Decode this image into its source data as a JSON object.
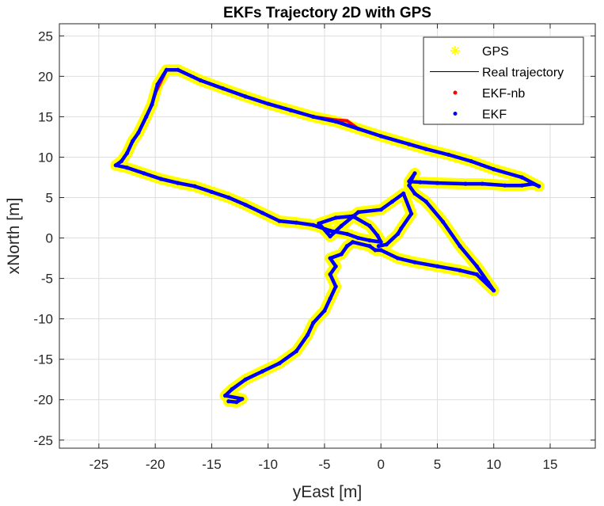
{
  "chart_data": {
    "type": "line",
    "title": "EKFs Trajectory 2D with GPS",
    "xlabel": "yEast [m]",
    "ylabel": "xNorth [m]",
    "xlim": [
      -28.5,
      19
    ],
    "ylim": [
      -26,
      26.5
    ],
    "xticks": [
      -25,
      -20,
      -15,
      -10,
      -5,
      0,
      5,
      10,
      15
    ],
    "yticks": [
      25,
      20,
      15,
      10,
      5,
      0,
      -5,
      -10,
      -15,
      -20,
      -25
    ],
    "grid": true,
    "legend_position": "top-right",
    "series": [
      {
        "name": "GPS",
        "marker": "asterisk",
        "color": "#ffff00",
        "points": [
          [
            -13.5,
            -20.2
          ],
          [
            -12.8,
            -20.3
          ],
          [
            -12.3,
            -19.9
          ],
          [
            -13.8,
            -19.5
          ],
          [
            -13.2,
            -18.7
          ],
          [
            -12.0,
            -17.5
          ],
          [
            -10.5,
            -16.5
          ],
          [
            -9.0,
            -15.5
          ],
          [
            -7.5,
            -14.0
          ],
          [
            -6.5,
            -12.0
          ],
          [
            -6.0,
            -10.5
          ],
          [
            -5.0,
            -9.0
          ],
          [
            -4.5,
            -7.5
          ],
          [
            -4.0,
            -6.0
          ],
          [
            -4.5,
            -4.5
          ],
          [
            -4.0,
            -3.5
          ],
          [
            -4.5,
            -2.5
          ],
          [
            -3.5,
            -2.0
          ],
          [
            -3.0,
            -1.0
          ],
          [
            -2.5,
            -0.5
          ],
          [
            -1.0,
            -1.0
          ],
          [
            -0.5,
            -1.5
          ],
          [
            0.0,
            -1.5
          ],
          [
            1.5,
            -2.5
          ],
          [
            3.0,
            -3.0
          ],
          [
            5.0,
            -3.5
          ],
          [
            7.0,
            -4.0
          ],
          [
            8.5,
            -4.5
          ],
          [
            10.0,
            -6.5
          ],
          [
            9.5,
            -5.5
          ],
          [
            8.5,
            -3.5
          ],
          [
            7.0,
            -1.0
          ],
          [
            5.5,
            2.0
          ],
          [
            4.0,
            4.5
          ],
          [
            3.0,
            5.5
          ],
          [
            2.5,
            6.5
          ],
          [
            2.8,
            7.5
          ],
          [
            3.0,
            8.0
          ],
          [
            2.5,
            7.0
          ],
          [
            3.5,
            6.9
          ],
          [
            5.0,
            6.8
          ],
          [
            7.5,
            6.7
          ],
          [
            9.0,
            6.7
          ],
          [
            11.0,
            6.5
          ],
          [
            12.5,
            6.5
          ],
          [
            13.5,
            6.7
          ],
          [
            14.0,
            6.4
          ],
          [
            12.5,
            7.5
          ],
          [
            10.0,
            8.5
          ],
          [
            8.0,
            9.5
          ],
          [
            6.0,
            10.3
          ],
          [
            4.0,
            11.0
          ],
          [
            2.5,
            11.6
          ],
          [
            0.0,
            12.6
          ],
          [
            -2.0,
            13.5
          ],
          [
            -4.0,
            14.4
          ],
          [
            -6.0,
            15.0
          ],
          [
            -8.0,
            15.8
          ],
          [
            -10.0,
            16.6
          ],
          [
            -12.0,
            17.5
          ],
          [
            -14.0,
            18.5
          ],
          [
            -16.0,
            19.5
          ],
          [
            -18.0,
            20.8
          ],
          [
            -19.0,
            20.8
          ],
          [
            -19.8,
            19.0
          ],
          [
            -20.3,
            16.5
          ],
          [
            -20.8,
            15.0
          ],
          [
            -21.5,
            13.0
          ],
          [
            -22.0,
            12.0
          ],
          [
            -22.5,
            10.5
          ],
          [
            -23.0,
            9.5
          ],
          [
            -23.5,
            9.0
          ],
          [
            -22.5,
            8.7
          ],
          [
            -21.0,
            8.0
          ],
          [
            -19.5,
            7.3
          ],
          [
            -18.0,
            6.8
          ],
          [
            -16.5,
            6.4
          ],
          [
            -15.0,
            5.7
          ],
          [
            -13.5,
            5.0
          ],
          [
            -12.0,
            4.1
          ],
          [
            -10.5,
            3.1
          ],
          [
            -9.0,
            2.1
          ],
          [
            -7.5,
            1.9
          ],
          [
            -6.0,
            1.6
          ],
          [
            -4.5,
            0.9
          ],
          [
            -3.0,
            0.5
          ],
          [
            -2.0,
            0.0
          ],
          [
            -1.0,
            -0.3
          ],
          [
            0.0,
            -0.5
          ],
          [
            -0.3,
            0.3
          ],
          [
            -1.0,
            1.5
          ],
          [
            -2.5,
            2.7
          ],
          [
            -4.0,
            2.5
          ],
          [
            -5.5,
            1.8
          ],
          [
            -4.5,
            0.2
          ],
          [
            -3.5,
            1.5
          ],
          [
            -2.0,
            3.2
          ],
          [
            0.0,
            3.5
          ],
          [
            1.0,
            4.5
          ],
          [
            2.0,
            5.5
          ],
          [
            2.7,
            3.0
          ],
          [
            1.8,
            1.2
          ],
          [
            1.5,
            0.5
          ],
          [
            0.5,
            -0.8
          ],
          [
            -0.2,
            -1.0
          ]
        ]
      },
      {
        "name": "Real trajectory",
        "marker": "none",
        "color": "#000000",
        "points": []
      },
      {
        "name": "EKF-nb",
        "marker": "dot",
        "color": "#ff0000",
        "points": [
          [
            -13.5,
            -20.2
          ],
          [
            -12.8,
            -20.3
          ],
          [
            -12.3,
            -19.9
          ],
          [
            -13.8,
            -19.5
          ],
          [
            -13.2,
            -18.7
          ],
          [
            -12.0,
            -17.5
          ],
          [
            -10.5,
            -16.5
          ],
          [
            -9.0,
            -15.5
          ],
          [
            -7.5,
            -14.0
          ],
          [
            -6.5,
            -12.0
          ],
          [
            -6.0,
            -10.5
          ],
          [
            -5.0,
            -9.0
          ],
          [
            -4.5,
            -7.5
          ],
          [
            -4.0,
            -6.0
          ],
          [
            -4.5,
            -4.5
          ],
          [
            -4.0,
            -3.5
          ],
          [
            -4.5,
            -2.5
          ],
          [
            -3.5,
            -2.0
          ],
          [
            -3.0,
            -1.0
          ],
          [
            -2.5,
            -0.5
          ],
          [
            -1.0,
            -1.0
          ],
          [
            -0.5,
            -1.5
          ],
          [
            0.0,
            -1.5
          ],
          [
            1.5,
            -2.5
          ],
          [
            3.0,
            -3.0
          ],
          [
            5.0,
            -3.5
          ],
          [
            7.0,
            -4.0
          ],
          [
            8.5,
            -4.5
          ],
          [
            10.0,
            -6.5
          ],
          [
            9.5,
            -5.5
          ],
          [
            8.5,
            -3.5
          ],
          [
            7.0,
            -1.0
          ],
          [
            5.5,
            2.0
          ],
          [
            4.0,
            4.5
          ],
          [
            3.0,
            5.5
          ],
          [
            2.5,
            6.5
          ],
          [
            2.8,
            7.5
          ],
          [
            3.0,
            8.0
          ],
          [
            2.5,
            7.0
          ],
          [
            3.5,
            6.9
          ],
          [
            5.0,
            6.8
          ],
          [
            7.5,
            6.7
          ],
          [
            9.0,
            6.7
          ],
          [
            11.0,
            6.5
          ],
          [
            12.5,
            6.5
          ],
          [
            13.5,
            6.7
          ],
          [
            14.0,
            6.4
          ],
          [
            12.5,
            7.5
          ],
          [
            10.0,
            8.5
          ],
          [
            8.0,
            9.5
          ],
          [
            6.0,
            10.3
          ],
          [
            4.0,
            11.0
          ],
          [
            2.5,
            11.6
          ],
          [
            0.0,
            12.6
          ],
          [
            -2.0,
            13.5
          ],
          [
            -3.0,
            14.5
          ],
          [
            -4.0,
            14.6
          ],
          [
            -6.0,
            15.0
          ],
          [
            -8.0,
            15.8
          ],
          [
            -10.0,
            16.6
          ],
          [
            -12.0,
            17.5
          ],
          [
            -14.0,
            18.5
          ],
          [
            -16.0,
            19.5
          ],
          [
            -18.0,
            20.8
          ],
          [
            -19.0,
            20.8
          ],
          [
            -20.0,
            17.9
          ],
          [
            -20.3,
            16.5
          ],
          [
            -20.8,
            15.0
          ],
          [
            -21.5,
            13.0
          ],
          [
            -22.0,
            12.0
          ],
          [
            -22.5,
            10.5
          ],
          [
            -23.0,
            9.5
          ],
          [
            -23.5,
            9.0
          ],
          [
            -22.5,
            8.7
          ],
          [
            -21.0,
            8.0
          ],
          [
            -19.5,
            7.3
          ],
          [
            -18.0,
            6.8
          ],
          [
            -16.5,
            6.4
          ],
          [
            -15.0,
            5.7
          ],
          [
            -13.5,
            5.0
          ],
          [
            -12.0,
            4.1
          ],
          [
            -10.5,
            3.1
          ],
          [
            -9.0,
            2.1
          ],
          [
            -7.5,
            1.9
          ],
          [
            -6.0,
            1.6
          ],
          [
            -4.5,
            0.9
          ],
          [
            -3.0,
            0.5
          ],
          [
            -2.0,
            0.0
          ],
          [
            -1.0,
            -0.3
          ],
          [
            0.0,
            -0.5
          ],
          [
            -0.3,
            0.3
          ],
          [
            -1.0,
            1.5
          ],
          [
            -2.5,
            2.7
          ],
          [
            -4.0,
            2.5
          ],
          [
            -5.5,
            1.8
          ],
          [
            -4.5,
            0.2
          ],
          [
            -3.5,
            1.5
          ],
          [
            -2.0,
            3.2
          ],
          [
            0.0,
            3.5
          ],
          [
            1.0,
            4.5
          ],
          [
            2.0,
            5.5
          ],
          [
            2.7,
            3.0
          ],
          [
            1.8,
            1.2
          ],
          [
            1.5,
            0.5
          ],
          [
            0.5,
            -0.8
          ],
          [
            -0.2,
            -1.0
          ]
        ]
      },
      {
        "name": "EKF",
        "marker": "dot",
        "color": "#0000ff",
        "points": [
          [
            -13.5,
            -20.2
          ],
          [
            -12.8,
            -20.3
          ],
          [
            -12.3,
            -19.9
          ],
          [
            -13.8,
            -19.5
          ],
          [
            -13.2,
            -18.7
          ],
          [
            -12.0,
            -17.5
          ],
          [
            -10.5,
            -16.5
          ],
          [
            -9.0,
            -15.5
          ],
          [
            -7.5,
            -14.0
          ],
          [
            -6.5,
            -12.0
          ],
          [
            -6.0,
            -10.5
          ],
          [
            -5.0,
            -9.0
          ],
          [
            -4.5,
            -7.5
          ],
          [
            -4.0,
            -6.0
          ],
          [
            -4.5,
            -4.5
          ],
          [
            -4.0,
            -3.5
          ],
          [
            -4.5,
            -2.5
          ],
          [
            -3.5,
            -2.0
          ],
          [
            -3.0,
            -1.0
          ],
          [
            -2.5,
            -0.5
          ],
          [
            -1.0,
            -1.0
          ],
          [
            -0.5,
            -1.5
          ],
          [
            0.0,
            -1.5
          ],
          [
            1.5,
            -2.5
          ],
          [
            3.0,
            -3.0
          ],
          [
            5.0,
            -3.5
          ],
          [
            7.0,
            -4.0
          ],
          [
            8.5,
            -4.5
          ],
          [
            10.0,
            -6.5
          ],
          [
            9.5,
            -5.5
          ],
          [
            8.5,
            -3.5
          ],
          [
            7.0,
            -1.0
          ],
          [
            5.5,
            2.0
          ],
          [
            4.0,
            4.5
          ],
          [
            3.0,
            5.5
          ],
          [
            2.5,
            6.5
          ],
          [
            2.8,
            7.5
          ],
          [
            3.0,
            8.0
          ],
          [
            2.5,
            7.0
          ],
          [
            3.5,
            6.9
          ],
          [
            5.0,
            6.8
          ],
          [
            7.5,
            6.7
          ],
          [
            9.0,
            6.7
          ],
          [
            11.0,
            6.5
          ],
          [
            12.5,
            6.5
          ],
          [
            13.5,
            6.7
          ],
          [
            14.0,
            6.4
          ],
          [
            12.5,
            7.5
          ],
          [
            10.0,
            8.5
          ],
          [
            8.0,
            9.5
          ],
          [
            6.0,
            10.3
          ],
          [
            4.0,
            11.0
          ],
          [
            2.5,
            11.6
          ],
          [
            0.0,
            12.6
          ],
          [
            -2.0,
            13.5
          ],
          [
            -4.0,
            14.4
          ],
          [
            -6.0,
            15.0
          ],
          [
            -8.0,
            15.8
          ],
          [
            -10.0,
            16.6
          ],
          [
            -12.0,
            17.5
          ],
          [
            -14.0,
            18.5
          ],
          [
            -16.0,
            19.5
          ],
          [
            -18.0,
            20.8
          ],
          [
            -19.0,
            20.8
          ],
          [
            -19.8,
            19.0
          ],
          [
            -20.3,
            16.5
          ],
          [
            -20.8,
            15.0
          ],
          [
            -21.5,
            13.0
          ],
          [
            -22.0,
            12.0
          ],
          [
            -22.5,
            10.5
          ],
          [
            -23.0,
            9.5
          ],
          [
            -23.5,
            9.0
          ],
          [
            -22.5,
            8.7
          ],
          [
            -21.0,
            8.0
          ],
          [
            -19.5,
            7.3
          ],
          [
            -18.0,
            6.8
          ],
          [
            -16.5,
            6.4
          ],
          [
            -15.0,
            5.7
          ],
          [
            -13.5,
            5.0
          ],
          [
            -12.0,
            4.1
          ],
          [
            -10.5,
            3.1
          ],
          [
            -9.0,
            2.1
          ],
          [
            -7.5,
            1.9
          ],
          [
            -6.0,
            1.6
          ],
          [
            -4.5,
            0.9
          ],
          [
            -3.0,
            0.5
          ],
          [
            -2.0,
            0.0
          ],
          [
            -1.0,
            -0.3
          ],
          [
            0.0,
            -0.5
          ],
          [
            -0.3,
            0.3
          ],
          [
            -1.0,
            1.5
          ],
          [
            -2.5,
            2.7
          ],
          [
            -4.0,
            2.5
          ],
          [
            -5.5,
            1.8
          ],
          [
            -4.5,
            0.2
          ],
          [
            -3.5,
            1.5
          ],
          [
            -2.0,
            3.2
          ],
          [
            0.0,
            3.5
          ],
          [
            1.0,
            4.5
          ],
          [
            2.0,
            5.5
          ],
          [
            2.7,
            3.0
          ],
          [
            1.8,
            1.2
          ],
          [
            1.5,
            0.5
          ],
          [
            0.5,
            -0.8
          ],
          [
            -0.2,
            -1.0
          ]
        ]
      }
    ]
  }
}
